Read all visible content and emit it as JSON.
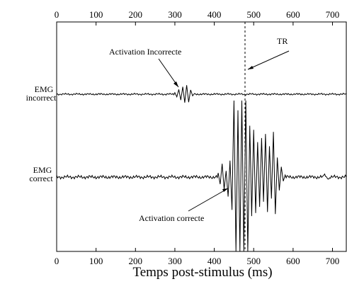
{
  "chart_data": {
    "type": "line",
    "title": "",
    "xlabel": "Temps post-stimulus (ms)",
    "ylabel": "",
    "xlim": [
      0,
      735
    ],
    "x_ticks": [
      0,
      100,
      200,
      300,
      400,
      500,
      600,
      700
    ],
    "grid": false,
    "series": [
      {
        "name": "EMG incorrect",
        "label_lines": [
          "EMG",
          "incorrect"
        ],
        "baseline": 0,
        "events": [
          {
            "t": 300,
            "amp": 0.3
          },
          {
            "t": 305,
            "amp": -0.5
          },
          {
            "t": 310,
            "amp": 0.9
          },
          {
            "t": 315,
            "amp": -1.1
          },
          {
            "t": 320,
            "amp": 1.4
          },
          {
            "t": 325,
            "amp": -1.6
          },
          {
            "t": 330,
            "amp": 1.7
          },
          {
            "t": 335,
            "amp": -1.5
          },
          {
            "t": 340,
            "amp": 0.8
          },
          {
            "t": 345,
            "amp": -0.3
          }
        ]
      },
      {
        "name": "EMG correct",
        "label_lines": [
          "EMG",
          "correct"
        ],
        "baseline": 0,
        "events": [
          {
            "t": 410,
            "amp": 0.4
          },
          {
            "t": 415,
            "amp": -0.7
          },
          {
            "t": 420,
            "amp": 1.3
          },
          {
            "t": 425,
            "amp": -1.2
          },
          {
            "t": 430,
            "amp": 0.6
          },
          {
            "t": 435,
            "amp": -1.9
          },
          {
            "t": 440,
            "amp": 1.6
          },
          {
            "t": 445,
            "amp": -3.2
          },
          {
            "t": 450,
            "amp": 8.0
          },
          {
            "t": 455,
            "amp": -8.0
          },
          {
            "t": 460,
            "amp": 6.5
          },
          {
            "t": 465,
            "amp": -8.0
          },
          {
            "t": 470,
            "amp": 8.0
          },
          {
            "t": 475,
            "amp": -8.0
          },
          {
            "t": 480,
            "amp": 8.0
          },
          {
            "t": 485,
            "amp": -8.0
          },
          {
            "t": 490,
            "amp": 5.0
          },
          {
            "t": 495,
            "amp": -3.8
          },
          {
            "t": 500,
            "amp": 4.6
          },
          {
            "t": 505,
            "amp": -3.5
          },
          {
            "t": 510,
            "amp": 3.4
          },
          {
            "t": 515,
            "amp": -2.9
          },
          {
            "t": 520,
            "amp": 3.8
          },
          {
            "t": 525,
            "amp": -2.4
          },
          {
            "t": 530,
            "amp": 4.2
          },
          {
            "t": 535,
            "amp": -3.4
          },
          {
            "t": 540,
            "amp": 3.0
          },
          {
            "t": 545,
            "amp": -2.1
          },
          {
            "t": 550,
            "amp": 4.4
          },
          {
            "t": 555,
            "amp": -3.6
          },
          {
            "t": 560,
            "amp": 1.9
          },
          {
            "t": 565,
            "amp": -1.3
          },
          {
            "t": 570,
            "amp": 1.0
          },
          {
            "t": 575,
            "amp": -0.4
          },
          {
            "t": 580,
            "amp": 0.2
          },
          {
            "t": 680,
            "amp": 0.3
          },
          {
            "t": 690,
            "amp": -0.2
          }
        ]
      }
    ],
    "markers": [
      {
        "name": "TR",
        "x": 478,
        "style": "dashed-vertical-line"
      }
    ],
    "annotations": [
      {
        "text": "Activation Incorrecte",
        "points_to_series": "EMG incorrect",
        "points_to_x": 325
      },
      {
        "text": "TR",
        "points_to_series": "EMG incorrect",
        "points_to_x": 478
      },
      {
        "text": "Activation correcte",
        "points_to_series": "EMG correct",
        "points_to_x": 430
      }
    ]
  }
}
